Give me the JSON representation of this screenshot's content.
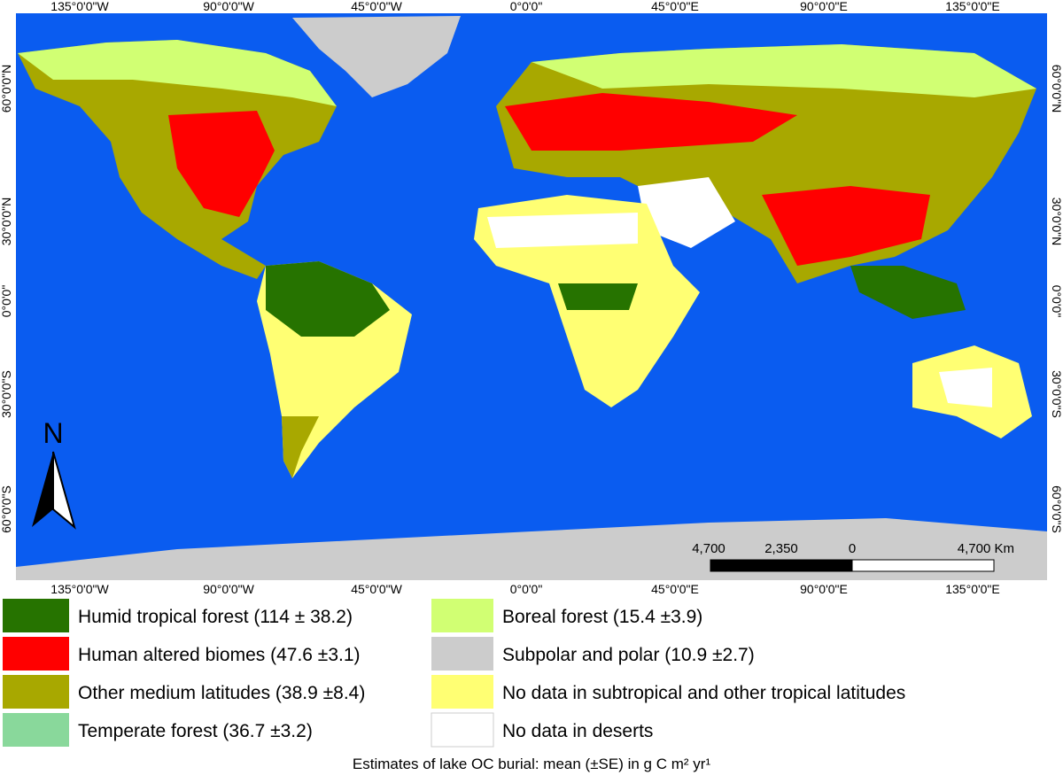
{
  "map": {
    "top_labels": [
      "135°0'0\"W",
      "90°0'0\"W",
      "45°0'0\"W",
      "0°0'0\"",
      "45°0'0\"E",
      "90°0'0\"E",
      "135°0'0\"E"
    ],
    "bottom_labels": [
      "135°0'0\"W",
      "90°0'0\"W",
      "45°0'0\"W",
      "0°0'0\"",
      "45°0'0\"E",
      "90°0'0\"E",
      "135°0'0\"E"
    ],
    "left_labels": [
      "60°0'0\"N",
      "30°0'0\"N",
      "0°0'0\"",
      "30°0'0\"S",
      "60°0'0\"S"
    ],
    "right_labels": [
      "60°0'0\"N",
      "30°0'0\"N",
      "0°0'0\"",
      "30°0'0\"S",
      "60°0'0\"S"
    ],
    "north": "N",
    "scale_labels": [
      "4,700",
      "2,350",
      "0",
      "4,700 Km"
    ]
  },
  "legend": [
    {
      "label": "Humid tropical forest (114 ± 38.2)",
      "color": "#267300"
    },
    {
      "label": "Human altered biomes (47.6 ±3.1)",
      "color": "#ff0000"
    },
    {
      "label": "Other medium latitudes  (38.9 ±8.4)",
      "color": "#a8a800"
    },
    {
      "label": "Temperate forest (36.7 ±3.2)",
      "color": "#89d89b"
    },
    {
      "label": "Boreal forest (15.4 ±3.9)",
      "color": "#d1ff73"
    },
    {
      "label": "Subpolar and polar (10.9 ±2.7)",
      "color": "#cccccc"
    },
    {
      "label": "No data in subtropical and other tropical latitudes",
      "color": "#ffff73"
    },
    {
      "label": "No data in deserts",
      "color": "#ffffff"
    }
  ],
  "caption": "Estimates of lake OC burial: mean (±SE) in g C m² yr¹"
}
